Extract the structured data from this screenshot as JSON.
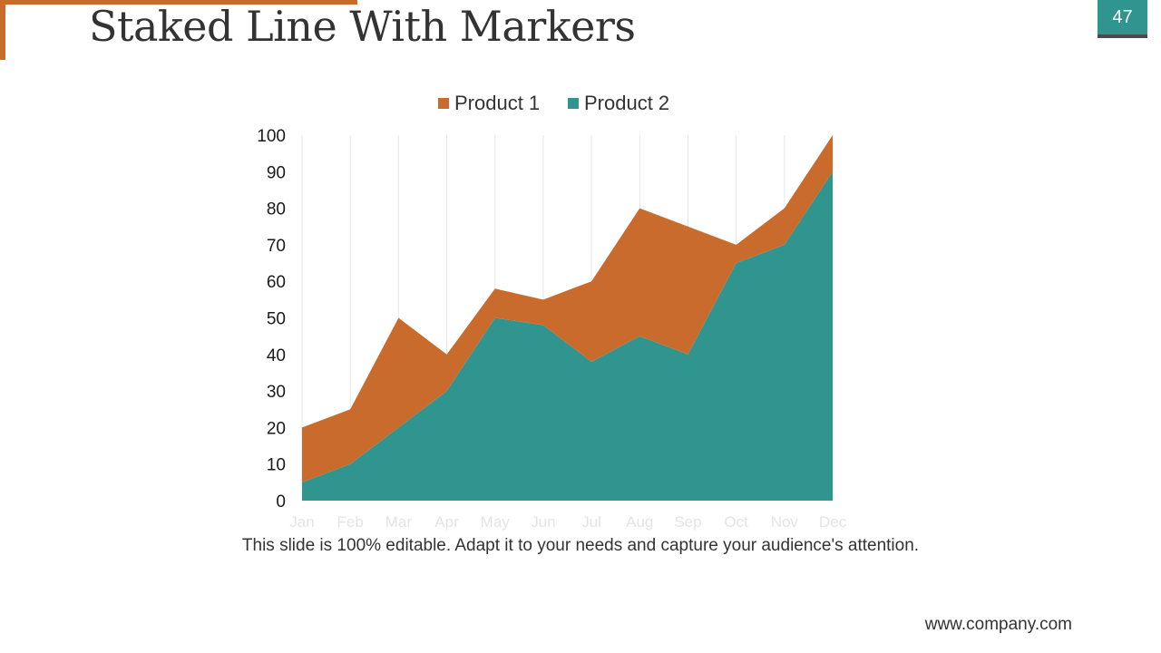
{
  "slide": {
    "title": "Staked Line With Markers",
    "page_number": "47",
    "caption": "This slide is 100% editable. Adapt it to your needs and capture your audience's attention.",
    "footer": "www.company.com"
  },
  "colors": {
    "accent_orange": "#c96b2c",
    "accent_teal": "#31958f",
    "product_1": "#c96b2c",
    "product_2": "#31958f"
  },
  "chart_data": {
    "type": "area",
    "stacked": true,
    "title": "",
    "xlabel": "",
    "ylabel": "",
    "x": [
      "Jan",
      "Feb",
      "Mar",
      "Apr",
      "May",
      "Jun",
      "Jul",
      "Aug",
      "Sep",
      "Oct",
      "Nov",
      "Dec"
    ],
    "series": [
      {
        "name": "Product 2",
        "values": [
          5,
          10,
          20,
          30,
          50,
          48,
          38,
          45,
          40,
          65,
          70,
          90
        ]
      },
      {
        "name": "Product 1",
        "values": [
          15,
          15,
          30,
          10,
          8,
          7,
          22,
          35,
          35,
          5,
          10,
          10
        ]
      }
    ],
    "ylim": [
      0,
      100
    ],
    "yticks": [
      0,
      10,
      20,
      30,
      40,
      50,
      60,
      70,
      80,
      90,
      100
    ],
    "legend": {
      "position": "top",
      "entries": [
        "Product 1",
        "Product 2"
      ]
    },
    "grid": {
      "vertical": true,
      "horizontal": false
    }
  }
}
